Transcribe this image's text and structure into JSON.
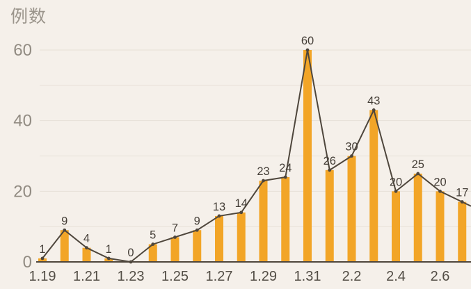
{
  "chart_data": {
    "type": "bar",
    "subtype": "bars with overlaid trend line and point markers",
    "title": "例数",
    "ylabel": "例数",
    "x_tick_labels": [
      "1.19",
      "",
      "1.21",
      "",
      "1.23",
      "",
      "1.25",
      "",
      "1.27",
      "",
      "1.29",
      "",
      "1.31",
      "",
      "2.2",
      "",
      "2.4",
      "",
      "2.6",
      ""
    ],
    "values": [
      1,
      9,
      4,
      1,
      0,
      5,
      7,
      9,
      13,
      14,
      23,
      24,
      60,
      26,
      30,
      43,
      20,
      25,
      20,
      17
    ],
    "yticks": [
      0,
      20,
      40,
      60
    ],
    "ylim": [
      0,
      60
    ],
    "grid_step": 10,
    "grid": "on",
    "legend": "none",
    "line_runs_off_right_edge": true
  },
  "colors": {
    "background": "#F5F0EA",
    "bar": "#F2A527",
    "line": "#4E463C",
    "marker": "#4E463C",
    "axis_line": "#4E463C",
    "data_label": "#443E37",
    "y_tick_label": "#928C83",
    "x_tick_label": "#534E46",
    "gridline": "#E6E0D7",
    "title": "#9B958C"
  }
}
